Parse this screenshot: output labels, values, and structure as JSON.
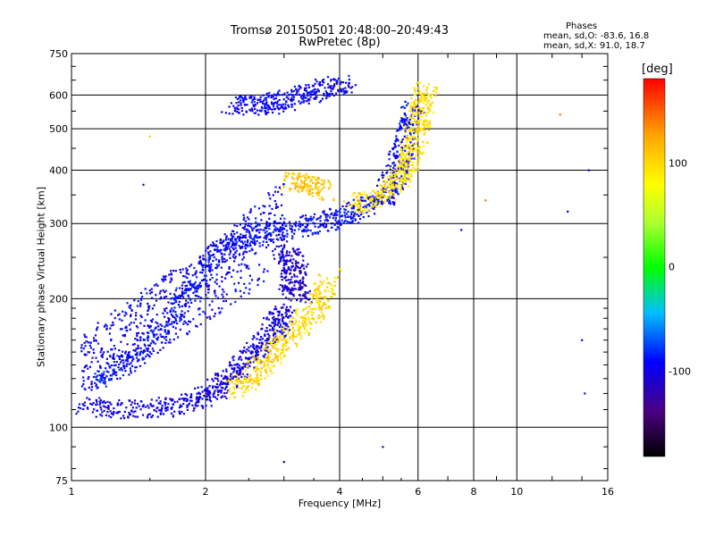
{
  "chart_data": {
    "type": "scatter",
    "title": "Tromsø 20150501 20:48:00–20:49:43",
    "subtitle": "RwPretec (8p)",
    "xlabel": "Frequency [MHz]",
    "ylabel": "Stationary phase Virtual Height [km]",
    "x_scale": "log",
    "y_scale": "log",
    "xlim": [
      1,
      16
    ],
    "ylim": [
      75,
      750
    ],
    "x_ticks": [
      "1",
      "2",
      "4",
      "6",
      "8",
      "10",
      "16"
    ],
    "y_ticks": [
      "75",
      "100",
      "200",
      "300",
      "400",
      "500",
      "600",
      "750"
    ],
    "grid": true,
    "phase_stats": {
      "title": "Phases",
      "o_line": "mean, sd,O: -83.6, 16.8",
      "x_line": "mean, sd,X:  91.0, 18.7"
    },
    "colorbar": {
      "label": "[deg]",
      "ticks": [
        "100",
        "0",
        "-100"
      ],
      "tick_values": [
        100,
        0,
        -100
      ],
      "range": [
        -180,
        180
      ]
    },
    "traces": [
      {
        "name": "",
        "phase": -100,
        "points": [
          [
            1.05,
            112
          ],
          [
            1.3,
            110
          ],
          [
            1.6,
            111
          ],
          [
            1.9,
            115
          ],
          [
            2.1,
            122
          ],
          [
            2.3,
            132
          ],
          [
            2.5,
            145
          ],
          [
            2.7,
            160
          ],
          [
            2.9,
            175
          ],
          [
            3.0,
            185
          ]
        ]
      },
      {
        "name": "",
        "phase": -90,
        "points": [
          [
            1.1,
            125
          ],
          [
            1.3,
            140
          ],
          [
            1.5,
            160
          ],
          [
            1.7,
            185
          ],
          [
            1.9,
            215
          ],
          [
            2.1,
            250
          ],
          [
            2.3,
            270
          ],
          [
            2.6,
            285
          ],
          [
            3.0,
            290
          ],
          [
            3.5,
            300
          ],
          [
            4.0,
            310
          ],
          [
            4.5,
            325
          ],
          [
            5.0,
            345
          ],
          [
            5.3,
            380
          ],
          [
            5.5,
            430
          ],
          [
            5.7,
            500
          ],
          [
            5.9,
            560
          ]
        ]
      },
      {
        "name": "",
        "phase": -95,
        "points": [
          [
            2.3,
            570
          ],
          [
            2.6,
            565
          ],
          [
            2.9,
            575
          ],
          [
            3.3,
            600
          ],
          [
            3.7,
            620
          ],
          [
            4.1,
            635
          ]
        ]
      },
      {
        "name": "",
        "phase": -110,
        "points": [
          [
            3.0,
            260
          ],
          [
            3.2,
            240
          ],
          [
            3.1,
            215
          ],
          [
            3.3,
            205
          ]
        ]
      },
      {
        "name": "",
        "phase": 100,
        "points": [
          [
            2.3,
            122
          ],
          [
            2.5,
            130
          ],
          [
            2.8,
            145
          ],
          [
            3.0,
            160
          ],
          [
            3.3,
            175
          ],
          [
            3.6,
            195
          ],
          [
            3.8,
            225
          ]
        ]
      },
      {
        "name": "",
        "phase": 95,
        "points": [
          [
            4.3,
            330
          ],
          [
            4.8,
            345
          ],
          [
            5.3,
            370
          ],
          [
            5.6,
            400
          ],
          [
            5.8,
            450
          ],
          [
            6.0,
            500
          ],
          [
            6.1,
            560
          ],
          [
            6.3,
            620
          ]
        ]
      },
      {
        "name": "",
        "phase": 110,
        "points": [
          [
            3.1,
            380
          ],
          [
            3.4,
            370
          ],
          [
            3.7,
            355
          ]
        ]
      }
    ],
    "sparse_points": [
      {
        "x": 1.5,
        "y": 480,
        "phase": 110
      },
      {
        "x": 1.45,
        "y": 370,
        "phase": -120
      },
      {
        "x": 5.0,
        "y": 90,
        "phase": -120
      },
      {
        "x": 3.0,
        "y": 83,
        "phase": -150
      },
      {
        "x": 7.5,
        "y": 290,
        "phase": -100
      },
      {
        "x": 8.5,
        "y": 340,
        "phase": 140
      },
      {
        "x": 12.5,
        "y": 540,
        "phase": 140
      },
      {
        "x": 14.0,
        "y": 160,
        "phase": -110
      },
      {
        "x": 14.2,
        "y": 120,
        "phase": -110
      },
      {
        "x": 13.0,
        "y": 320,
        "phase": -100
      },
      {
        "x": 14.5,
        "y": 400,
        "phase": -90
      }
    ]
  }
}
